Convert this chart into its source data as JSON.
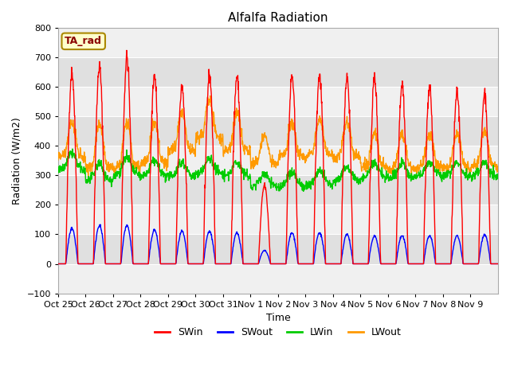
{
  "title": "Alfalfa Radiation",
  "xlabel": "Time",
  "ylabel": "Radiation (W/m2)",
  "ylim": [
    -100,
    800
  ],
  "yticks": [
    -100,
    0,
    100,
    200,
    300,
    400,
    500,
    600,
    700,
    800
  ],
  "xtick_labels": [
    "Oct 25",
    "Oct 26",
    "Oct 27",
    "Oct 28",
    "Oct 29",
    "Oct 30",
    "Oct 31",
    "Nov 1",
    "Nov 2",
    "Nov 3",
    "Nov 4",
    "Nov 5",
    "Nov 6",
    "Nov 7",
    "Nov 8",
    "Nov 9"
  ],
  "legend_labels": [
    "SWin",
    "SWout",
    "LWin",
    "LWout"
  ],
  "line_colors": [
    "#ff0000",
    "#0000ff",
    "#00cc00",
    "#ff9900"
  ],
  "ta_rad_label": "TA_rad",
  "fig_bg_color": "#ffffff",
  "plot_bg_color": "#e8e8e8",
  "band_color_light": "#f0f0f0",
  "band_color_dark": "#e0e0e0",
  "SWin_peaks": [
    650,
    670,
    700,
    640,
    605,
    640,
    635,
    265,
    635,
    640,
    635,
    630,
    610,
    595,
    580,
    580
  ],
  "SWout_peaks": [
    120,
    130,
    130,
    115,
    110,
    110,
    105,
    45,
    105,
    105,
    100,
    95,
    95,
    95,
    95,
    100
  ],
  "LWin_base": [
    330,
    295,
    315,
    310,
    310,
    320,
    310,
    275,
    275,
    280,
    295,
    305,
    305,
    310,
    310,
    310
  ],
  "LWout_base": [
    375,
    340,
    340,
    355,
    395,
    440,
    395,
    350,
    375,
    385,
    375,
    340,
    335,
    340,
    340,
    345
  ],
  "LWout_peak_boost": [
    90,
    120,
    130,
    110,
    100,
    100,
    100,
    70,
    90,
    90,
    90,
    90,
    90,
    90,
    90,
    90
  ],
  "LWin_peak_boost": [
    30,
    30,
    30,
    25,
    20,
    20,
    20,
    15,
    20,
    20,
    20,
    20,
    20,
    20,
    20,
    20
  ],
  "n_days": 16,
  "pts_per_day": 96
}
